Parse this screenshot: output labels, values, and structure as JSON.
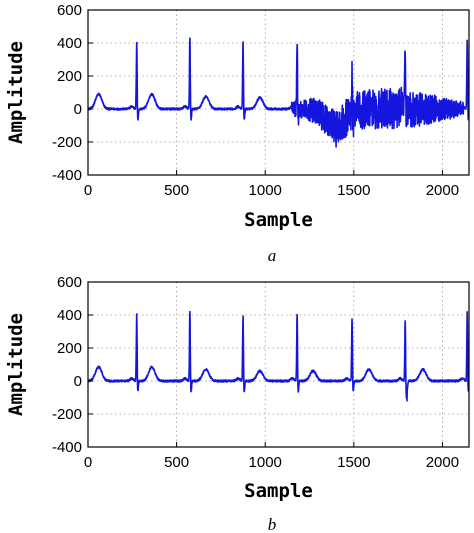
{
  "chart_data": [
    {
      "type": "line",
      "caption": "a",
      "xlabel": "Sample",
      "ylabel": "Amplitude",
      "xlim": [
        0,
        2150
      ],
      "ylim": [
        -400,
        600
      ],
      "xticks": [
        0,
        500,
        1000,
        1500,
        2000
      ],
      "yticks": [
        -400,
        -200,
        0,
        200,
        400,
        600
      ],
      "grid": true,
      "line_color": "#1515e0",
      "r_peaks": [
        {
          "x": 275,
          "y": 410
        },
        {
          "x": 575,
          "y": 435
        },
        {
          "x": 875,
          "y": 410
        },
        {
          "x": 1180,
          "y": 400
        },
        {
          "x": 1490,
          "y": 300
        },
        {
          "x": 1790,
          "y": 380
        },
        {
          "x": 2140,
          "y": 430
        }
      ],
      "t_waves": [
        {
          "x": 60,
          "y": 90
        },
        {
          "x": 360,
          "y": 90
        },
        {
          "x": 665,
          "y": 75
        },
        {
          "x": 970,
          "y": 70
        }
      ],
      "noise_segment": {
        "x_start": 1150,
        "x_end": 2120,
        "peak_to_peak_estimate": 300
      },
      "minimum": {
        "x": 1400,
        "y": -230
      }
    },
    {
      "type": "line",
      "caption": "b",
      "xlabel": "Sample",
      "ylabel": "Amplitude",
      "xlim": [
        0,
        2150
      ],
      "ylim": [
        -400,
        600
      ],
      "xticks": [
        0,
        500,
        1000,
        1500,
        2000
      ],
      "yticks": [
        -400,
        -200,
        0,
        200,
        400,
        600
      ],
      "grid": true,
      "line_color": "#1515e0",
      "r_peaks": [
        {
          "x": 275,
          "y": 410
        },
        {
          "x": 575,
          "y": 430
        },
        {
          "x": 875,
          "y": 405
        },
        {
          "x": 1180,
          "y": 410
        },
        {
          "x": 1490,
          "y": 390
        },
        {
          "x": 1790,
          "y": 375
        },
        {
          "x": 2140,
          "y": 430
        }
      ],
      "t_waves": [
        {
          "x": 60,
          "y": 85
        },
        {
          "x": 360,
          "y": 85
        },
        {
          "x": 665,
          "y": 70
        },
        {
          "x": 970,
          "y": 60
        },
        {
          "x": 1270,
          "y": 60
        },
        {
          "x": 1585,
          "y": 70
        },
        {
          "x": 1890,
          "y": 70
        }
      ],
      "noise_segment": null,
      "minimum": {
        "x": 1800,
        "y": -120
      }
    }
  ]
}
